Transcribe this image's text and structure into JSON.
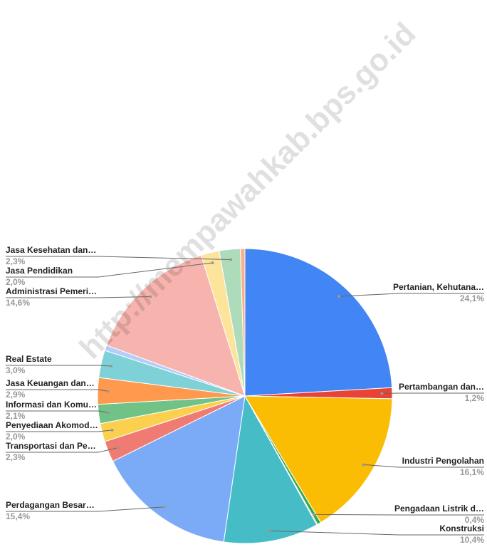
{
  "chart_data": {
    "type": "pie",
    "watermark": "http://mempawahkab.bps.go.id",
    "categories": [
      "Pertanian, Kehutana…",
      "Pertambangan dan…",
      "Industri Pengolahan",
      "Pengadaan Listrik d…",
      null,
      "Konstruksi",
      "Perdagangan Besar…",
      "Transportasi dan Pe…",
      "Penyediaan Akomod…",
      "Informasi dan Komu…",
      "Jasa Keuangan dan…",
      "Real Estate",
      null,
      "Administrasi Pemeri…",
      "Jasa Pendidikan",
      "Jasa Kesehatan dan…",
      null
    ],
    "values": [
      24.1,
      1.2,
      16.1,
      0.4,
      0.1,
      10.4,
      15.4,
      2.3,
      2.0,
      2.1,
      2.9,
      3.0,
      0.6,
      14.6,
      2.0,
      2.3,
      0.5
    ],
    "value_labels": [
      "24,1%",
      "1,2%",
      "16,1%",
      "0,4%",
      null,
      "10,4%",
      "15,4%",
      "2,3%",
      "2,0%",
      "2,1%",
      "2,9%",
      "3,0%",
      null,
      "14,6%",
      "2,0%",
      "2,3%",
      null
    ],
    "colors": [
      "#4285f4",
      "#ea4335",
      "#fbbc04",
      "#34a853",
      "#ff6d01",
      "#46bdc6",
      "#7baaf7",
      "#f07b72",
      "#fcd04f",
      "#71c287",
      "#ff994d",
      "#7ed1d7",
      "#b3cefb",
      "#f7b4ae",
      "#fde49b",
      "#aedcba",
      "#f8b08a"
    ]
  }
}
